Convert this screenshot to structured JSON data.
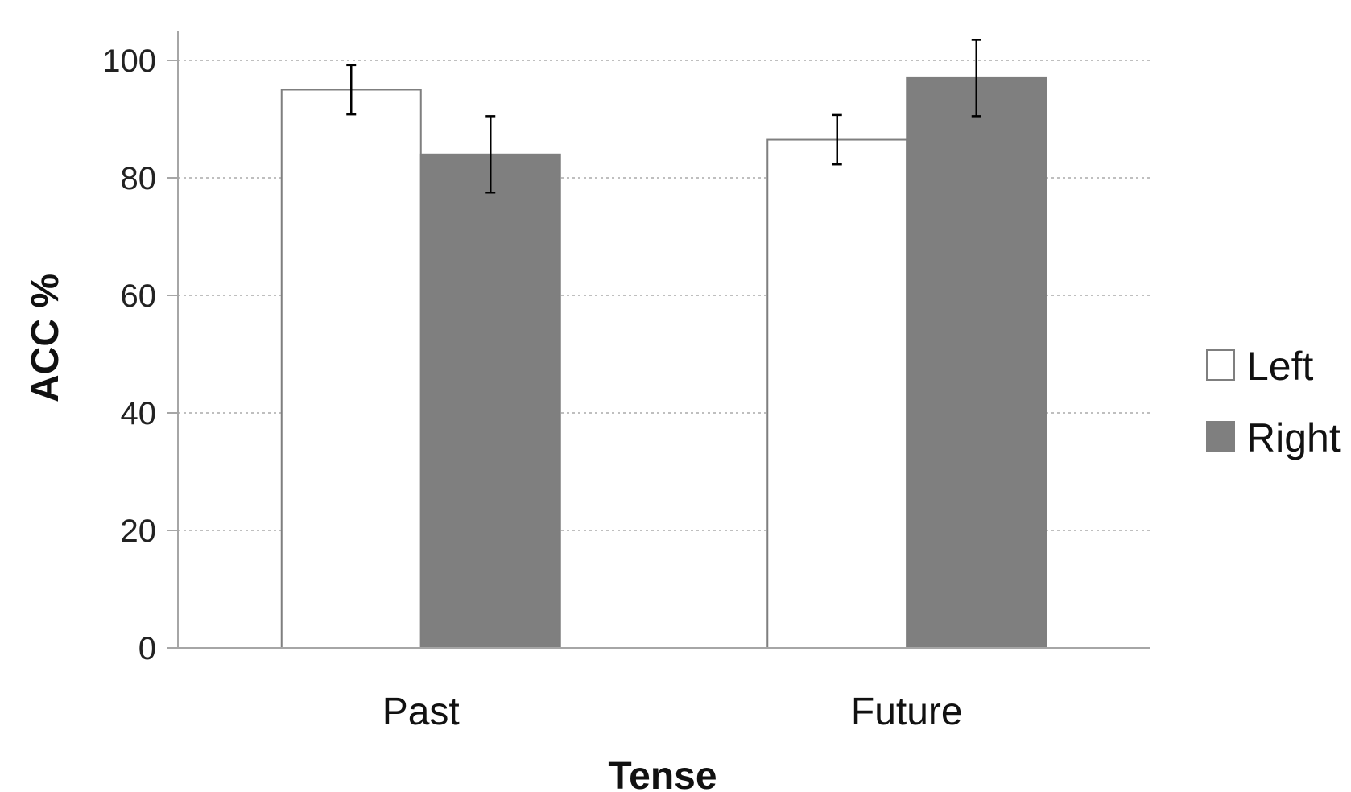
{
  "chart_data": {
    "type": "bar",
    "categories": [
      "Past",
      "Future"
    ],
    "series": [
      {
        "name": "Left",
        "values": [
          95,
          86.5
        ],
        "error": [
          4.2,
          4.2
        ],
        "color": "#ffffff"
      },
      {
        "name": "Right",
        "values": [
          84,
          97
        ],
        "error": [
          6.5,
          6.5
        ],
        "color": "#7f7f7f"
      }
    ],
    "xlabel": "Tense",
    "ylabel": "ACC %",
    "ylim": [
      0,
      100
    ],
    "yticks": [
      0,
      20,
      40,
      60,
      80,
      100
    ],
    "grid": "horizontal-dotted",
    "legend_position": "right",
    "axis_color": "#a6a6a6",
    "bar_edge_color": "#7f7f7f",
    "errorbar_color": "#000000"
  }
}
